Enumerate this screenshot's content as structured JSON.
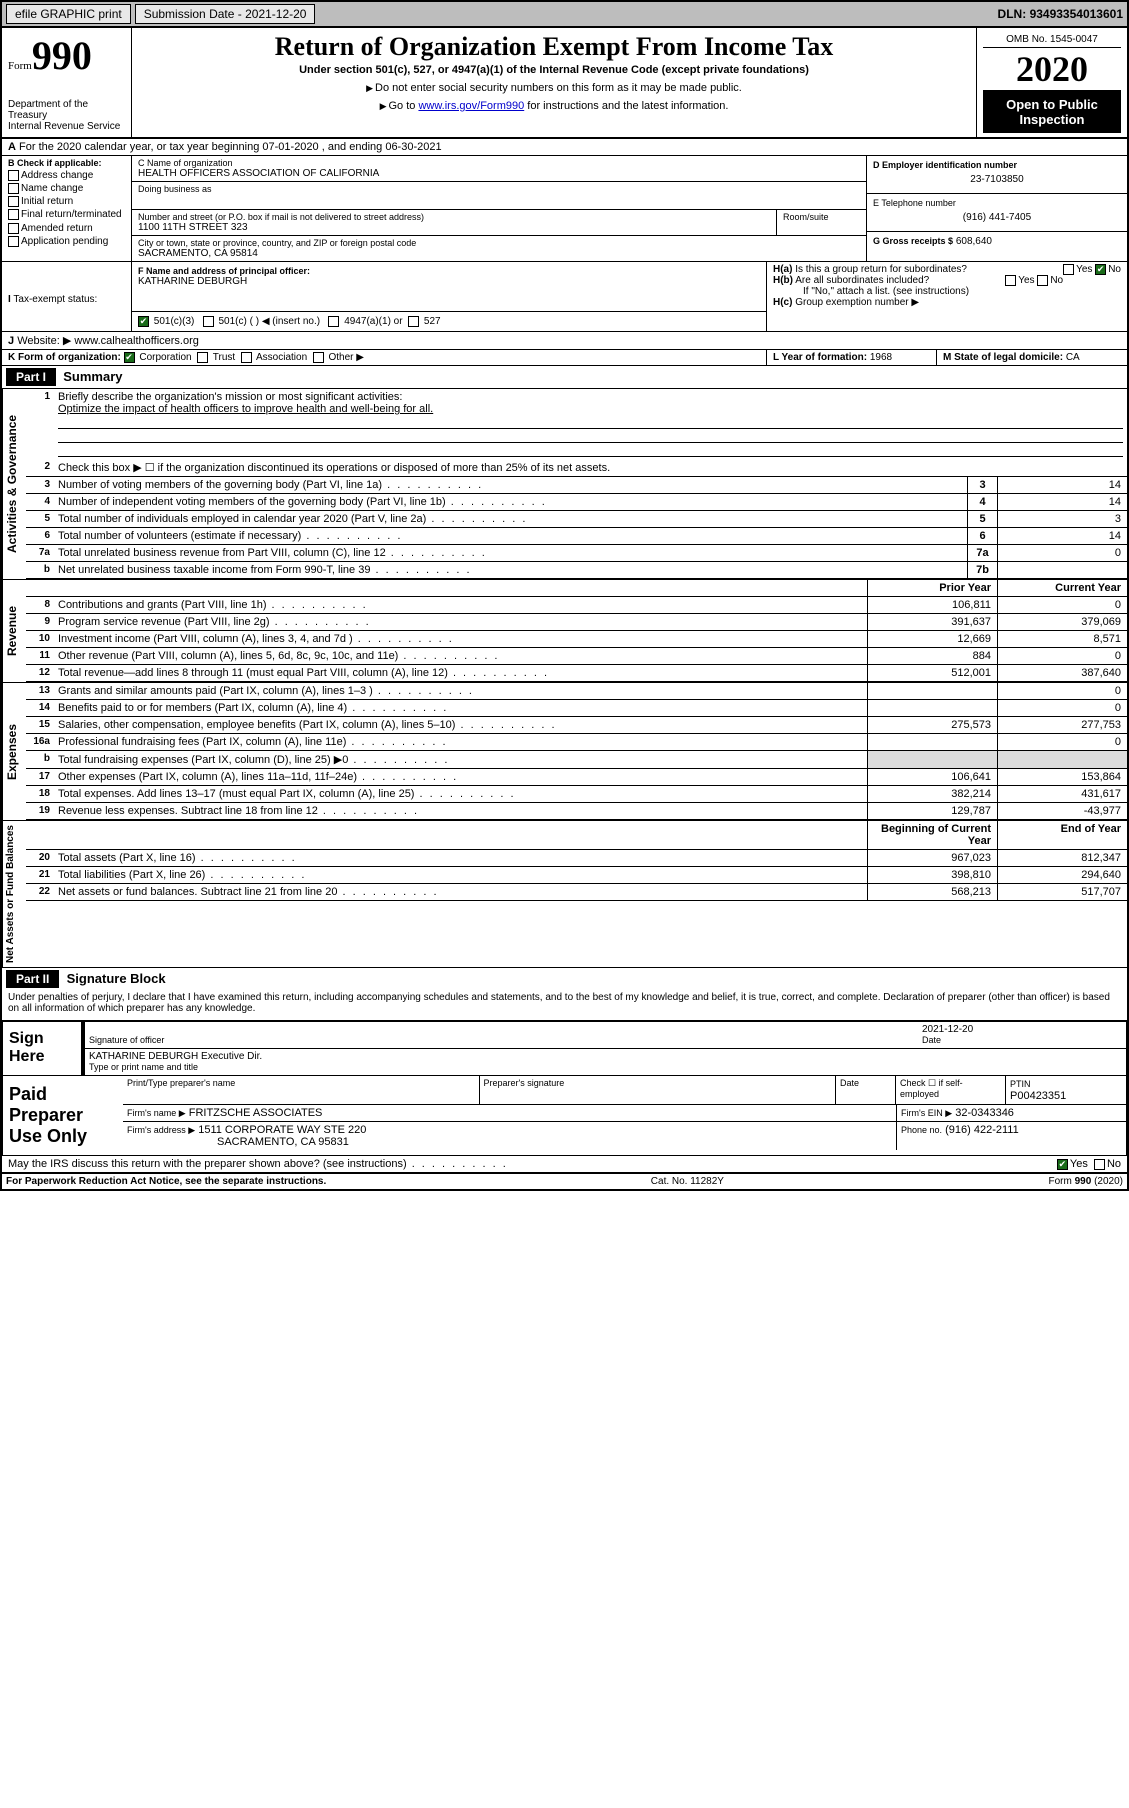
{
  "topbar": {
    "efile": "efile GRAPHIC print",
    "subdate_label": "Submission Date",
    "subdate": "2021-12-20",
    "dln_label": "DLN:",
    "dln": "93493354013601"
  },
  "header": {
    "form_small": "Form",
    "form_big": "990",
    "dept": "Department of the Treasury\nInternal Revenue Service",
    "title": "Return of Organization Exempt From Income Tax",
    "subtitle": "Under section 501(c), 527, or 4947(a)(1) of the Internal Revenue Code (except private foundations)",
    "note1": "Do not enter social security numbers on this form as it may be made public.",
    "note2_pre": "Go to ",
    "note2_link": "www.irs.gov/Form990",
    "note2_post": " for instructions and the latest information.",
    "omb": "OMB No. 1545-0047",
    "year": "2020",
    "open": "Open to Public Inspection"
  },
  "lineA": "For the 2020 calendar year, or tax year beginning 07-01-2020    , and ending 06-30-2021",
  "boxB": {
    "label": "B Check if applicable:",
    "items": [
      "Address change",
      "Name change",
      "Initial return",
      "Final return/terminated",
      "Amended return",
      "Application pending"
    ]
  },
  "boxC": {
    "name_label": "C Name of organization",
    "name": "HEALTH OFFICERS ASSOCIATION OF CALIFORNIA",
    "dba_label": "Doing business as",
    "dba": "",
    "street_label": "Number and street (or P.O. box if mail is not delivered to street address)",
    "room_label": "Room/suite",
    "street": "1100 11TH STREET 323",
    "city_label": "City or town, state or province, country, and ZIP or foreign postal code",
    "city": "SACRAMENTO, CA  95814"
  },
  "boxD": {
    "label": "D Employer identification number",
    "value": "23-7103850"
  },
  "boxE": {
    "label": "E Telephone number",
    "value": "(916) 441-7405"
  },
  "boxG": {
    "label": "G Gross receipts $",
    "value": "608,640"
  },
  "boxF": {
    "label": "F Name and address of principal officer:",
    "value": "KATHARINE DEBURGH"
  },
  "boxH": {
    "a": "Is this a group return for subordinates?",
    "b": "Are all subordinates included?",
    "b_note": "If \"No,\" attach a list. (see instructions)",
    "c": "Group exemption number ▶"
  },
  "boxI": {
    "label": "Tax-exempt status:",
    "opts": [
      "501(c)(3)",
      "501(c) (  ) ◀ (insert no.)",
      "4947(a)(1) or",
      "527"
    ]
  },
  "boxJ": {
    "label": "Website: ▶",
    "value": "www.calhealthofficers.org"
  },
  "boxK": {
    "label": "K Form of organization:",
    "opts": [
      "Corporation",
      "Trust",
      "Association",
      "Other ▶"
    ]
  },
  "boxL": {
    "label": "L Year of formation:",
    "value": "1968"
  },
  "boxM": {
    "label": "M State of legal domicile:",
    "value": "CA"
  },
  "partI": {
    "bar": "Part I",
    "title": "Summary",
    "vlabels": [
      "Activities & Governance",
      "Revenue",
      "Expenses",
      "Net Assets or Fund Balances"
    ],
    "q1": "Briefly describe the organization's mission or most significant activities:",
    "q1_ans": "Optimize the impact of health officers to improve health and well-being for all.",
    "q2": "Check this box ▶ ☐ if the organization discontinued its operations or disposed of more than 25% of its net assets.",
    "rows_gov": [
      {
        "n": "3",
        "t": "Number of voting members of the governing body (Part VI, line 1a)",
        "box": "3",
        "v": "14"
      },
      {
        "n": "4",
        "t": "Number of independent voting members of the governing body (Part VI, line 1b)",
        "box": "4",
        "v": "14"
      },
      {
        "n": "5",
        "t": "Total number of individuals employed in calendar year 2020 (Part V, line 2a)",
        "box": "5",
        "v": "3"
      },
      {
        "n": "6",
        "t": "Total number of volunteers (estimate if necessary)",
        "box": "6",
        "v": "14"
      },
      {
        "n": "7a",
        "t": "Total unrelated business revenue from Part VIII, column (C), line 12",
        "box": "7a",
        "v": "0"
      },
      {
        "n": "b",
        "t": "Net unrelated business taxable income from Form 990-T, line 39",
        "box": "7b",
        "v": ""
      }
    ],
    "col_prior": "Prior Year",
    "col_curr": "Current Year",
    "rows_rev": [
      {
        "n": "8",
        "t": "Contributions and grants (Part VIII, line 1h)",
        "p": "106,811",
        "c": "0"
      },
      {
        "n": "9",
        "t": "Program service revenue (Part VIII, line 2g)",
        "p": "391,637",
        "c": "379,069"
      },
      {
        "n": "10",
        "t": "Investment income (Part VIII, column (A), lines 3, 4, and 7d )",
        "p": "12,669",
        "c": "8,571"
      },
      {
        "n": "11",
        "t": "Other revenue (Part VIII, column (A), lines 5, 6d, 8c, 9c, 10c, and 11e)",
        "p": "884",
        "c": "0"
      },
      {
        "n": "12",
        "t": "Total revenue—add lines 8 through 11 (must equal Part VIII, column (A), line 12)",
        "p": "512,001",
        "c": "387,640"
      }
    ],
    "rows_exp": [
      {
        "n": "13",
        "t": "Grants and similar amounts paid (Part IX, column (A), lines 1–3 )",
        "p": "",
        "c": "0"
      },
      {
        "n": "14",
        "t": "Benefits paid to or for members (Part IX, column (A), line 4)",
        "p": "",
        "c": "0"
      },
      {
        "n": "15",
        "t": "Salaries, other compensation, employee benefits (Part IX, column (A), lines 5–10)",
        "p": "275,573",
        "c": "277,753"
      },
      {
        "n": "16a",
        "t": "Professional fundraising fees (Part IX, column (A), line 11e)",
        "p": "",
        "c": "0"
      },
      {
        "n": "b",
        "t": "Total fundraising expenses (Part IX, column (D), line 25) ▶0",
        "p": "",
        "c": "",
        "grey": true
      },
      {
        "n": "17",
        "t": "Other expenses (Part IX, column (A), lines 11a–11d, 11f–24e)",
        "p": "106,641",
        "c": "153,864"
      },
      {
        "n": "18",
        "t": "Total expenses. Add lines 13–17 (must equal Part IX, column (A), line 25)",
        "p": "382,214",
        "c": "431,617"
      },
      {
        "n": "19",
        "t": "Revenue less expenses. Subtract line 18 from line 12",
        "p": "129,787",
        "c": "-43,977"
      }
    ],
    "col_begin": "Beginning of Current Year",
    "col_end": "End of Year",
    "rows_net": [
      {
        "n": "20",
        "t": "Total assets (Part X, line 16)",
        "p": "967,023",
        "c": "812,347"
      },
      {
        "n": "21",
        "t": "Total liabilities (Part X, line 26)",
        "p": "398,810",
        "c": "294,640"
      },
      {
        "n": "22",
        "t": "Net assets or fund balances. Subtract line 21 from line 20",
        "p": "568,213",
        "c": "517,707"
      }
    ]
  },
  "partII": {
    "bar": "Part II",
    "title": "Signature Block",
    "decl": "Under penalties of perjury, I declare that I have examined this return, including accompanying schedules and statements, and to the best of my knowledge and belief, it is true, correct, and complete. Declaration of preparer (other than officer) is based on all information of which preparer has any knowledge."
  },
  "sign": {
    "label": "Sign Here",
    "sig_label": "Signature of officer",
    "date_label": "Date",
    "date": "2021-12-20",
    "name": "KATHARINE DEBURGH  Executive Dir.",
    "name_label": "Type or print name and title"
  },
  "prep": {
    "label": "Paid Preparer Use Only",
    "h1": "Print/Type preparer's name",
    "h2": "Preparer's signature",
    "h3": "Date",
    "h4": "Check ☐ if self-employed",
    "h5_label": "PTIN",
    "h5": "P00423351",
    "firm_label": "Firm's name    ▶",
    "firm": "FRITZSCHE ASSOCIATES",
    "ein_label": "Firm's EIN ▶",
    "ein": "32-0343346",
    "addr_label": "Firm's address ▶",
    "addr1": "1511 CORPORATE WAY STE 220",
    "addr2": "SACRAMENTO, CA  95831",
    "phone_label": "Phone no.",
    "phone": "(916) 422-2111",
    "discuss": "May the IRS discuss this return with the preparer shown above? (see instructions)"
  },
  "footer": {
    "pra": "For Paperwork Reduction Act Notice, see the separate instructions.",
    "cat": "Cat. No. 11282Y",
    "form": "Form 990 (2020)"
  },
  "colors": {
    "topbar_bg": "#bdbdbd",
    "link": "#0000cc",
    "check_green": "#1a6b1a"
  }
}
